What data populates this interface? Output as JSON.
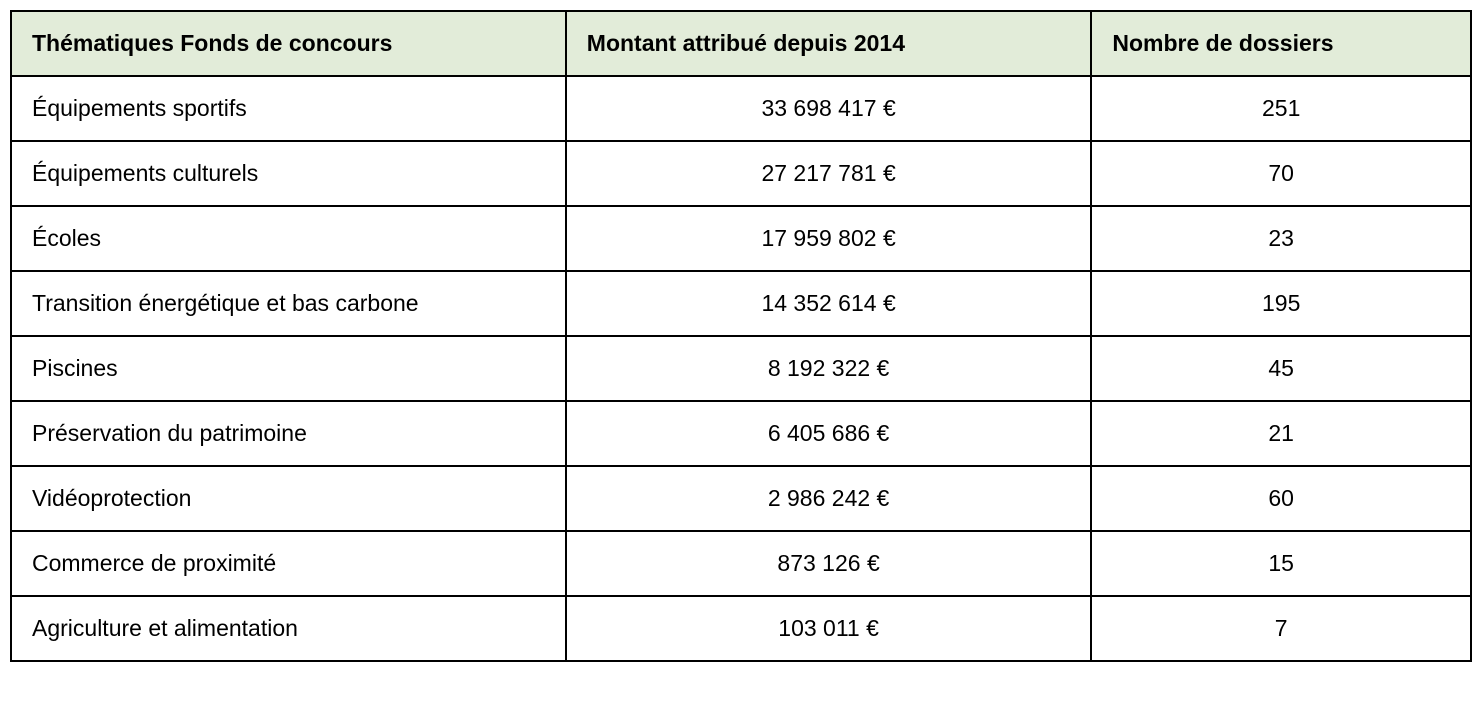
{
  "table": {
    "type": "table",
    "header_background_color": "#e2ecd9",
    "border_color": "#000000",
    "text_color": "#000000",
    "font_size_pt": 17,
    "columns": [
      {
        "label": "Thématiques Fonds de concours",
        "align": "left",
        "width_pct": 38
      },
      {
        "label": "Montant attribué depuis 2014",
        "align": "center",
        "width_pct": 36
      },
      {
        "label": "Nombre de dossiers",
        "align": "center",
        "width_pct": 26
      }
    ],
    "rows": [
      {
        "theme": "Équipements sportifs",
        "amount": "33 698 417 €",
        "count": "251"
      },
      {
        "theme": "Équipements culturels",
        "amount": "27 217 781 €",
        "count": "70"
      },
      {
        "theme": "Écoles",
        "amount": "17 959 802 €",
        "count": "23"
      },
      {
        "theme": "Transition énergétique et bas carbone",
        "amount": "14 352 614 €",
        "count": "195"
      },
      {
        "theme": "Piscines",
        "amount": "8 192 322 €",
        "count": "45"
      },
      {
        "theme": "Préservation du patrimoine",
        "amount": "6 405 686 €",
        "count": "21"
      },
      {
        "theme": "Vidéoprotection",
        "amount": "2 986 242 €",
        "count": "60"
      },
      {
        "theme": "Commerce de proximité",
        "amount": "873 126 €",
        "count": "15"
      },
      {
        "theme": "Agriculture et alimentation",
        "amount": "103 011 €",
        "count": "7"
      }
    ]
  }
}
